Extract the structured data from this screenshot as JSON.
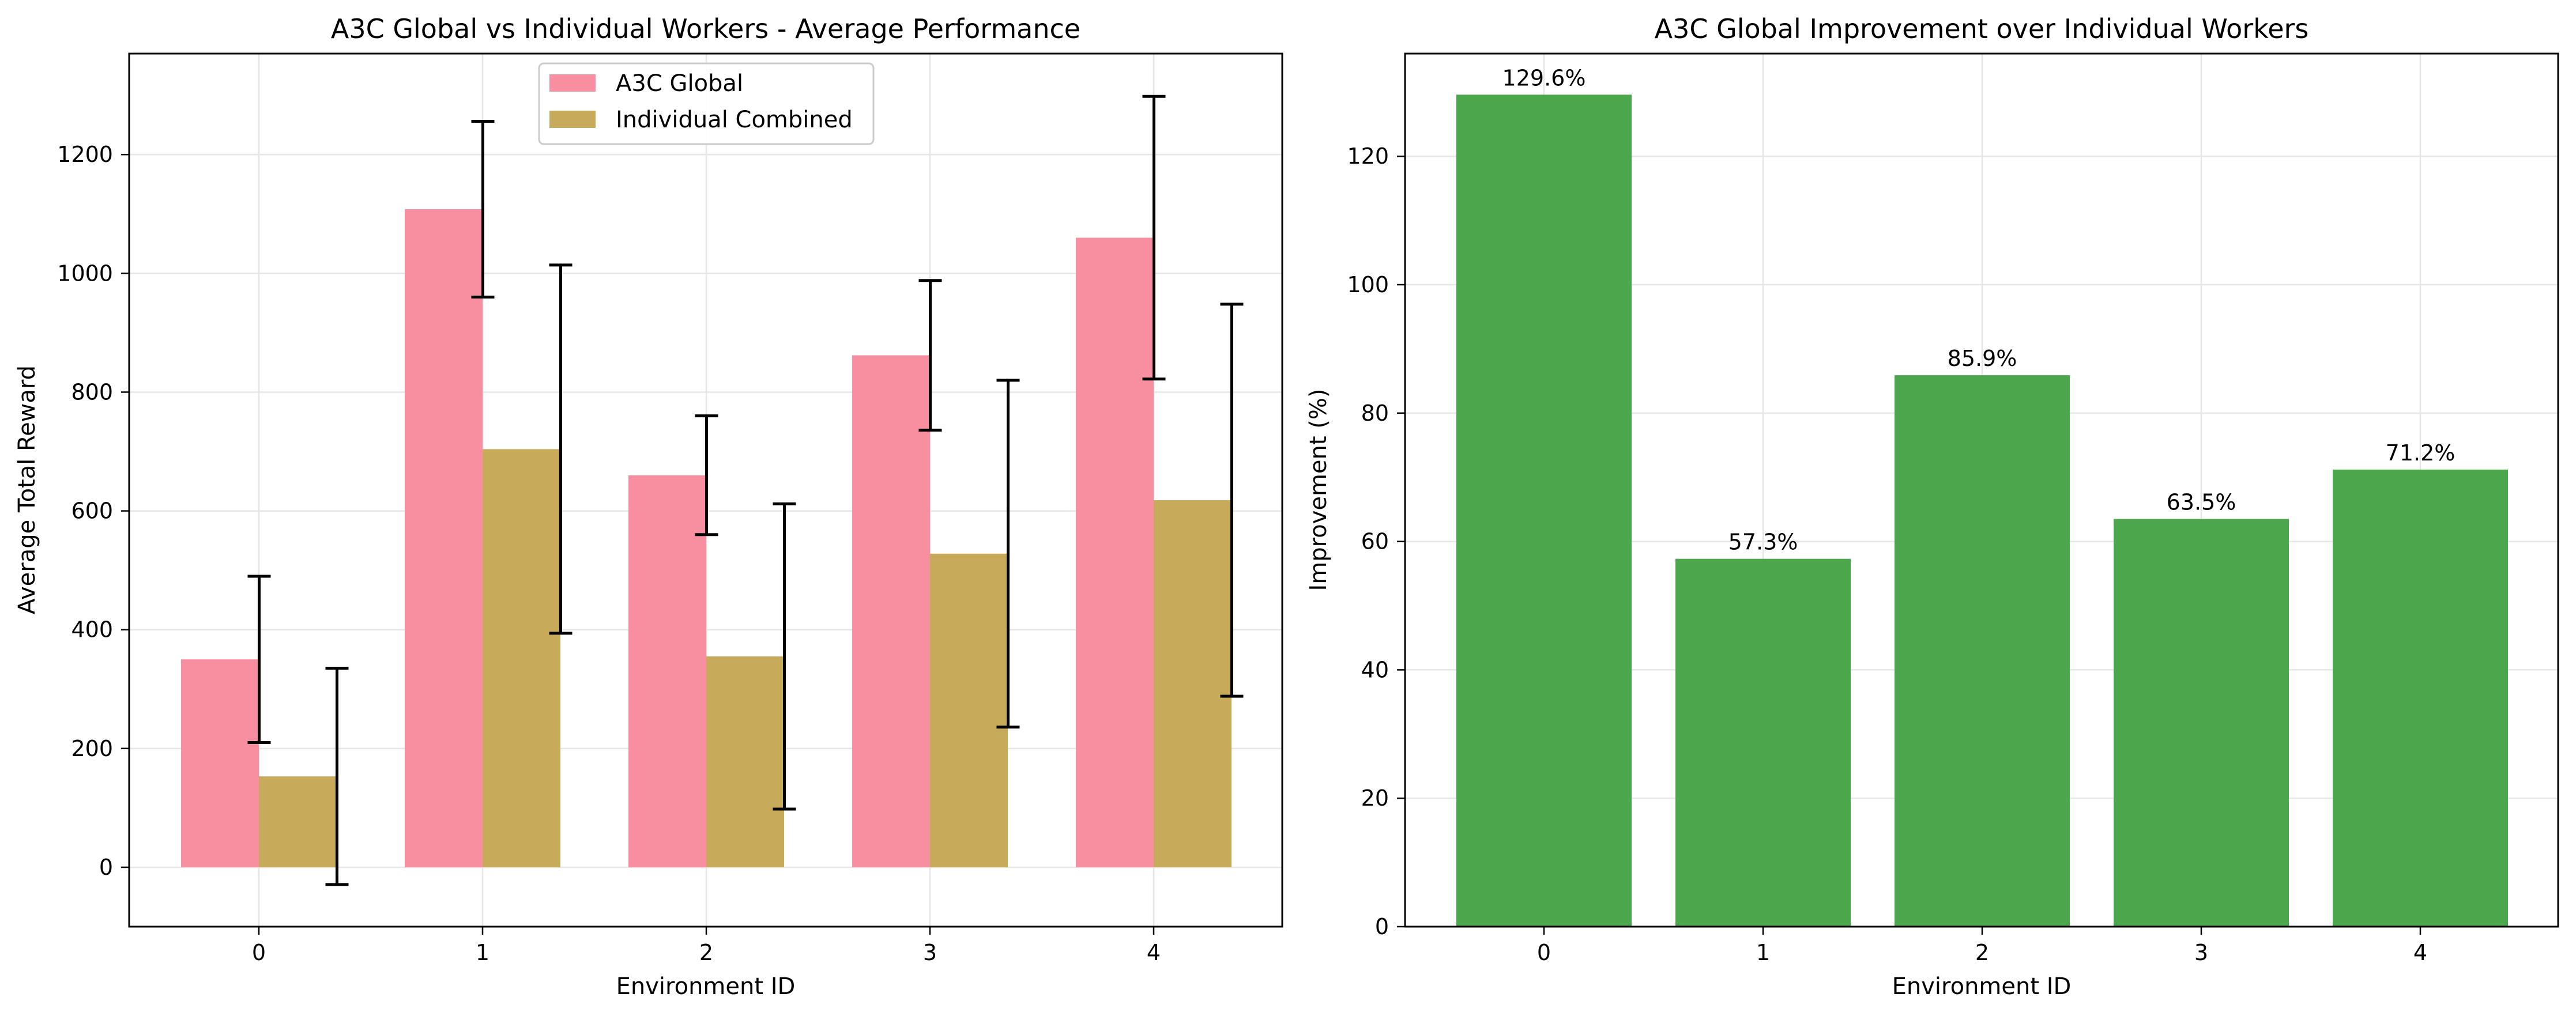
{
  "chart_data": [
    {
      "type": "bar",
      "title": "A3C Global vs Individual Workers - Average Performance",
      "xlabel": "Environment ID",
      "ylabel": "Average Total Reward",
      "categories": [
        "0",
        "1",
        "2",
        "3",
        "4"
      ],
      "ylim": [
        -100,
        1370
      ],
      "yticks": [
        0,
        200,
        400,
        600,
        800,
        1000,
        1200
      ],
      "grid": true,
      "legend_position": "top-center",
      "series": [
        {
          "name": "A3C Global",
          "color": "#f78fa1",
          "values": [
            350,
            1108,
            660,
            862,
            1060
          ],
          "error": [
            140,
            148,
            100,
            126,
            238
          ]
        },
        {
          "name": "Individual Combined",
          "color": "#c7aa5a",
          "values": [
            153,
            704,
            355,
            528,
            618
          ],
          "error": [
            182,
            310,
            257,
            292,
            330
          ]
        }
      ]
    },
    {
      "type": "bar",
      "title": "A3C Global Improvement over Individual Workers",
      "xlabel": "Environment ID",
      "ylabel": "Improvement (%)",
      "categories": [
        "0",
        "1",
        "2",
        "3",
        "4"
      ],
      "ylim": [
        0,
        136
      ],
      "yticks": [
        0,
        20,
        40,
        60,
        80,
        100,
        120
      ],
      "grid": true,
      "color": "#4ca64c",
      "values": [
        129.6,
        57.3,
        85.9,
        63.5,
        71.2
      ],
      "labels": [
        "129.6%",
        "57.3%",
        "85.9%",
        "63.5%",
        "71.2%"
      ]
    }
  ]
}
